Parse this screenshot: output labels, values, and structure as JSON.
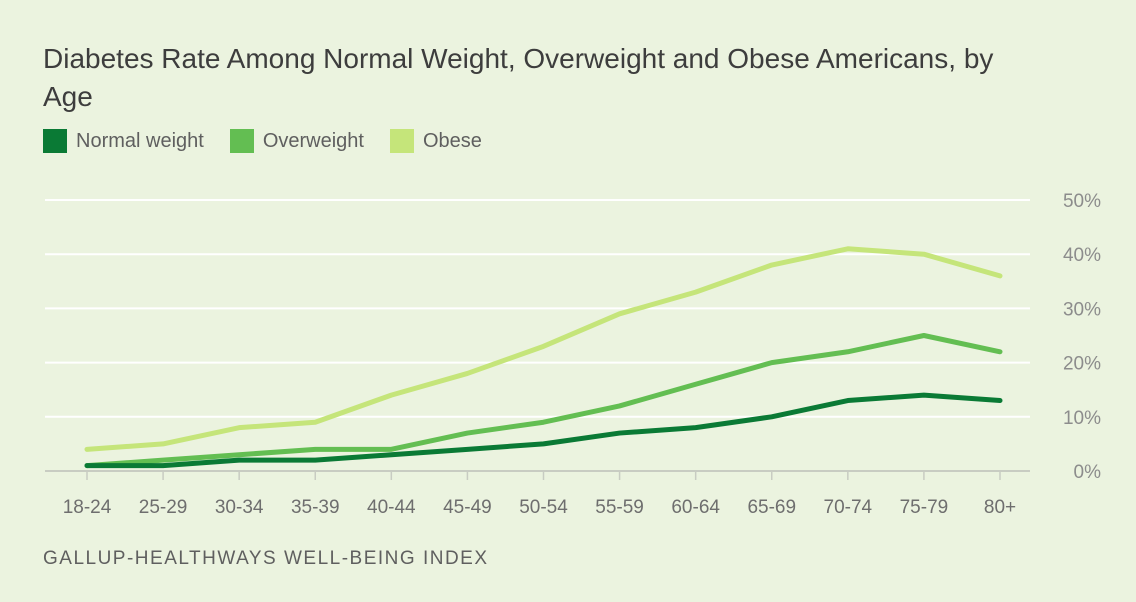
{
  "header": {
    "title": "Diabetes Rate Among Normal Weight, Overweight and Obese Americans, by Age"
  },
  "footer": {
    "source": "GALLUP-HEALTHWAYS WELL-BEING INDEX"
  },
  "colors": {
    "background": "#ebf3df",
    "gridline": "#ffffff",
    "axis": "#c8ccc2",
    "tick_text": "#8c8c8c",
    "normal_weight": "#0a7a35",
    "overweight": "#63be52",
    "obese": "#c5e57a"
  },
  "chart_data": {
    "type": "line",
    "title": "Diabetes Rate Among Normal Weight, Overweight and Obese Americans, by Age",
    "categories": [
      "18-24",
      "25-29",
      "30-34",
      "35-39",
      "40-44",
      "45-49",
      "50-54",
      "55-59",
      "60-64",
      "65-69",
      "70-74",
      "75-79",
      "80+"
    ],
    "ylim": [
      0,
      50
    ],
    "yticks": [
      "0%",
      "10%",
      "20%",
      "30%",
      "40%",
      "50%"
    ],
    "y_axis_position": "right",
    "grid": true,
    "legend_position": "top-left",
    "series": [
      {
        "name": "Normal weight",
        "color": "#0a7a35",
        "values": [
          1,
          1,
          2,
          2,
          3,
          4,
          5,
          7,
          8,
          10,
          13,
          14,
          13
        ]
      },
      {
        "name": "Overweight",
        "color": "#63be52",
        "values": [
          1,
          2,
          3,
          4,
          4,
          7,
          9,
          12,
          16,
          20,
          22,
          25,
          22
        ]
      },
      {
        "name": "Obese",
        "color": "#c5e57a",
        "values": [
          4,
          5,
          8,
          9,
          14,
          18,
          23,
          29,
          33,
          38,
          41,
          40,
          36
        ]
      }
    ]
  }
}
